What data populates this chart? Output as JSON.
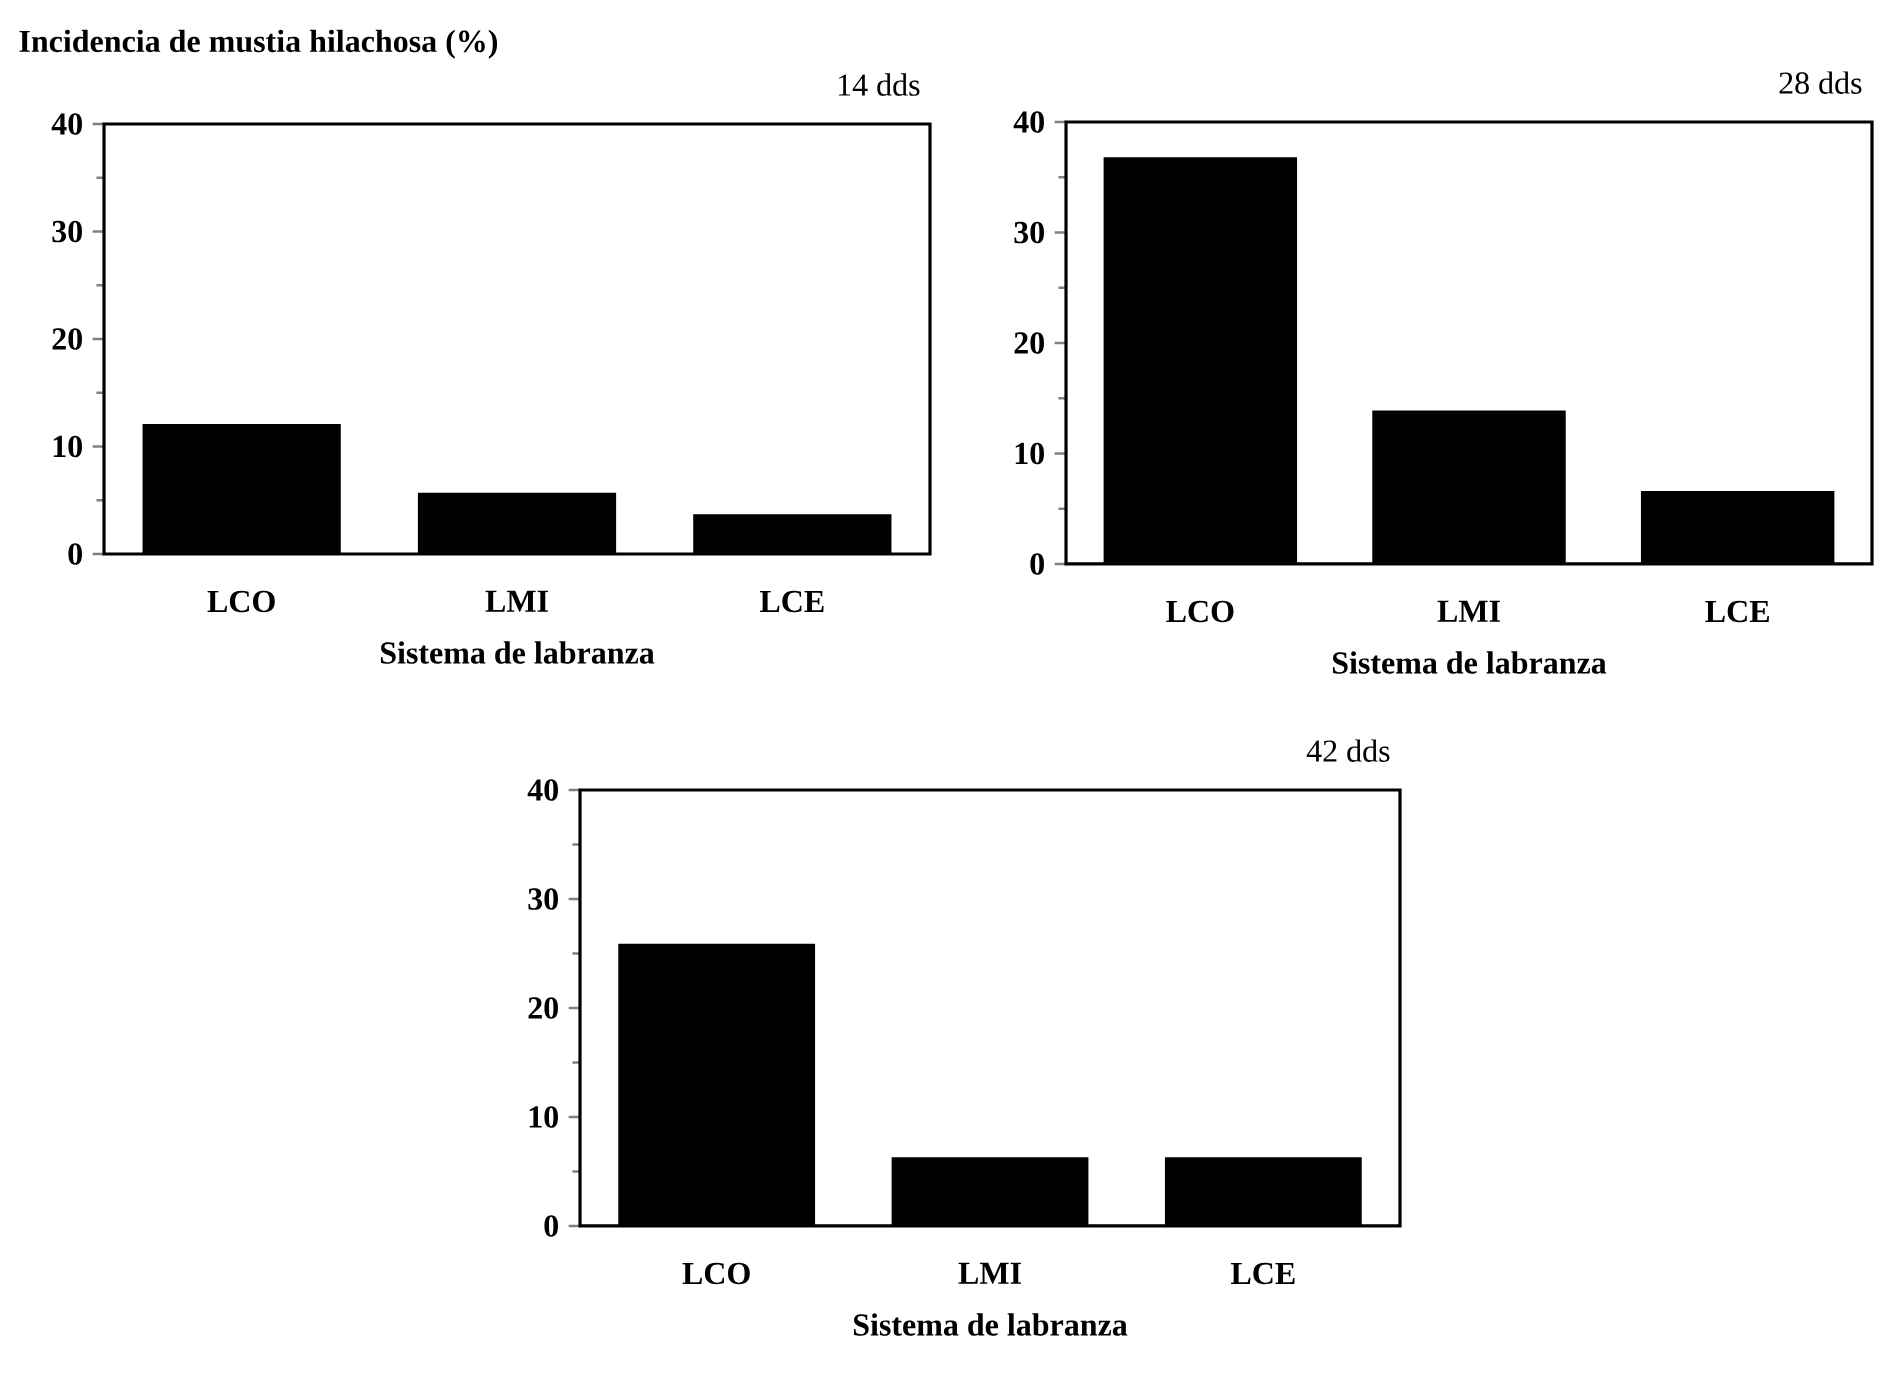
{
  "chart_data": [
    {
      "type": "bar",
      "title": "14 dds",
      "ylabel": "Incidencia de mustia hilachosa (%)",
      "xlabel": "Sistema de labranza",
      "categories": [
        "LCO",
        "LMI",
        "LCE"
      ],
      "values": [
        12.1,
        5.7,
        3.7
      ],
      "color": "#000000",
      "ylim": [
        0,
        40
      ],
      "yticks": [
        0,
        10,
        20,
        30,
        40
      ]
    },
    {
      "type": "bar",
      "title": "28 dds",
      "xlabel": "Sistema de labranza",
      "categories": [
        "LCO",
        "LMI",
        "LCE"
      ],
      "values": [
        36.8,
        13.9,
        6.6
      ],
      "color": "#000000",
      "ylim": [
        0,
        40
      ],
      "yticks": [
        0,
        10,
        20,
        30,
        40
      ]
    },
    {
      "type": "bar",
      "title": "42 dds",
      "xlabel": "Sistema de labranza",
      "categories": [
        "LCO",
        "LMI",
        "LCE"
      ],
      "values": [
        25.9,
        6.3,
        6.3
      ],
      "color": "#000000",
      "ylim": [
        0,
        40
      ],
      "yticks": [
        0,
        10,
        20,
        30,
        40
      ]
    }
  ]
}
